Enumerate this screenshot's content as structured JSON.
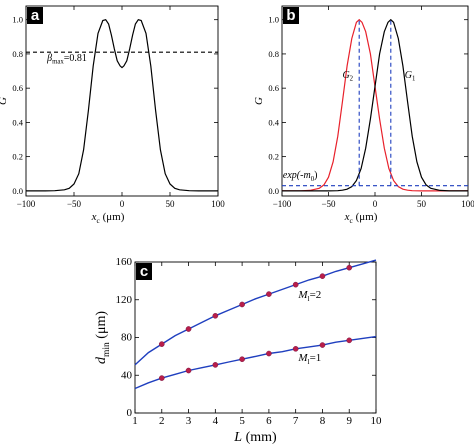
{
  "chart_data": [
    {
      "panel": "a",
      "type": "line",
      "xlabel": "x_c (μm)",
      "ylabel": "G",
      "xlim": [
        -100,
        100
      ],
      "ylim": [
        -0.03,
        1.08
      ],
      "x_ticks": [
        -100,
        -50,
        0,
        50,
        100
      ],
      "y_ticks": [
        0.0,
        0.2,
        0.4,
        0.6,
        0.8,
        1.0
      ],
      "x_tick_labels": [
        "−100",
        "−50",
        "0",
        "50",
        "100"
      ],
      "y_tick_labels": [
        "0.0",
        "0.2",
        "0.4",
        "0.6",
        "0.8",
        "1.0"
      ],
      "series": [
        {
          "color": "#000000",
          "x": [
            -100,
            -90,
            -80,
            -70,
            -60,
            -55,
            -50,
            -45,
            -40,
            -35,
            -30,
            -25,
            -20,
            -17,
            -14,
            -11,
            -8,
            -5,
            -2,
            0,
            2,
            5,
            8,
            11,
            14,
            17,
            20,
            25,
            30,
            35,
            40,
            45,
            50,
            55,
            60,
            70,
            80,
            90,
            100
          ],
          "y": [
            0,
            0,
            0,
            0.001,
            0.006,
            0.015,
            0.04,
            0.1,
            0.24,
            0.47,
            0.73,
            0.92,
            0.995,
            1.0,
            0.975,
            0.91,
            0.83,
            0.76,
            0.73,
            0.72,
            0.73,
            0.76,
            0.83,
            0.91,
            0.975,
            1.0,
            0.995,
            0.92,
            0.73,
            0.47,
            0.24,
            0.1,
            0.04,
            0.015,
            0.006,
            0.001,
            0,
            0,
            0
          ]
        },
        {
          "color": "#000000",
          "dashed": true,
          "x": [
            -100,
            100
          ],
          "y": [
            0.81,
            0.81
          ]
        }
      ],
      "annotations": [
        {
          "text": "β",
          "sub": "max",
          "value_text": "=0.81",
          "x": -78,
          "y": 0.76
        }
      ],
      "grid": false
    },
    {
      "panel": "b",
      "type": "line",
      "xlabel": "x_c (μm)",
      "ylabel": "G",
      "xlim": [
        -100,
        100
      ],
      "ylim": [
        -0.03,
        1.08
      ],
      "x_ticks": [
        -100,
        -50,
        0,
        50,
        100
      ],
      "y_ticks": [
        0.0,
        0.2,
        0.4,
        0.6,
        0.8,
        1.0
      ],
      "x_tick_labels": [
        "−100",
        "−50",
        "0",
        "50",
        "100"
      ],
      "y_tick_labels": [
        "0.0",
        "0.2",
        "0.4",
        "0.6",
        "0.8",
        "1.0"
      ],
      "series": [
        {
          "name": "G_2",
          "color": "#e8212b",
          "x": [
            -100,
            -90,
            -80,
            -70,
            -60,
            -55,
            -50,
            -45,
            -40,
            -35,
            -30,
            -25,
            -20,
            -17,
            -14,
            -10,
            -5,
            0,
            5,
            10,
            15,
            20,
            25,
            30,
            35,
            40,
            50,
            60,
            70,
            80,
            90,
            100
          ],
          "y": [
            0,
            0,
            0,
            0.003,
            0.015,
            0.035,
            0.08,
            0.17,
            0.32,
            0.52,
            0.73,
            0.89,
            0.985,
            1.0,
            0.985,
            0.93,
            0.8,
            0.61,
            0.42,
            0.25,
            0.13,
            0.06,
            0.025,
            0.01,
            0.004,
            0.001,
            0,
            0,
            0,
            0,
            0,
            0
          ]
        },
        {
          "name": "G_1",
          "color": "#000000",
          "x": [
            -100,
            -90,
            -80,
            -70,
            -60,
            -50,
            -40,
            -35,
            -30,
            -25,
            -20,
            -15,
            -10,
            -5,
            0,
            5,
            10,
            14,
            17,
            20,
            25,
            30,
            35,
            40,
            45,
            50,
            55,
            60,
            70,
            80,
            90,
            100
          ],
          "y": [
            0,
            0,
            0,
            0,
            0,
            0,
            0.001,
            0.004,
            0.01,
            0.025,
            0.06,
            0.13,
            0.25,
            0.42,
            0.61,
            0.8,
            0.93,
            0.985,
            1.0,
            0.985,
            0.89,
            0.73,
            0.52,
            0.32,
            0.17,
            0.08,
            0.035,
            0.015,
            0.003,
            0,
            0,
            0
          ]
        },
        {
          "name": "exp(-m_0)",
          "color": "#1f3fbf",
          "dashed": true,
          "x": [
            -100,
            100
          ],
          "y": [
            0.03,
            0.03
          ]
        },
        {
          "color": "#1f3fbf",
          "dashed": true,
          "x": [
            -17,
            -17
          ],
          "y": [
            0.03,
            1.0
          ]
        },
        {
          "color": "#1f3fbf",
          "dashed": true,
          "x": [
            17,
            17
          ],
          "y": [
            0.03,
            1.0
          ]
        }
      ],
      "annotations": [
        {
          "text": "G",
          "sub": "2",
          "x": -35,
          "y": 0.66
        },
        {
          "text": "G",
          "sub": "1",
          "x": 32,
          "y": 0.66
        },
        {
          "text": "exp(-m",
          "sub": "0",
          "value_text": ")",
          "x": -99,
          "y": 0.075
        }
      ],
      "grid": false
    },
    {
      "panel": "c",
      "type": "line",
      "xlabel": "L (mm)",
      "ylabel": "d_min (μm)",
      "xlim": [
        1,
        10
      ],
      "ylim": [
        0,
        160
      ],
      "x_ticks": [
        1,
        2,
        3,
        4,
        5,
        6,
        7,
        8,
        9,
        10
      ],
      "y_ticks": [
        0,
        40,
        80,
        120,
        160
      ],
      "x_tick_labels": [
        "1",
        "2",
        "3",
        "4",
        "5",
        "6",
        "7",
        "8",
        "9",
        "10"
      ],
      "y_tick_labels": [
        "0",
        "40",
        "80",
        "120",
        "160"
      ],
      "series": [
        {
          "name": "M_l=2",
          "line_color": "#1f3fbf",
          "marker_color": "#b81e4a",
          "line_x": [
            1,
            1.5,
            2,
            2.5,
            3,
            3.5,
            4,
            4.5,
            5,
            5.5,
            6,
            6.5,
            7,
            7.5,
            8,
            8.5,
            9,
            9.5,
            10
          ],
          "line_y": [
            51,
            64,
            73,
            82,
            89,
            96,
            103,
            109,
            115,
            121,
            126,
            131,
            136,
            141,
            145,
            150,
            154,
            158,
            162
          ],
          "points_x": [
            2,
            3,
            4,
            5,
            6,
            7,
            8,
            9
          ],
          "points_y": [
            73,
            89,
            103,
            115,
            126,
            136,
            145,
            154
          ]
        },
        {
          "name": "M_l=1",
          "line_color": "#1f3fbf",
          "marker_color": "#b81e4a",
          "line_x": [
            1,
            1.5,
            2,
            2.5,
            3,
            3.5,
            4,
            4.5,
            5,
            5.5,
            6,
            6.5,
            7,
            7.5,
            8,
            8.5,
            9,
            9.5,
            10
          ],
          "line_y": [
            26,
            32,
            37,
            41,
            45,
            48,
            51,
            54,
            57,
            60,
            63,
            65,
            68,
            70,
            72,
            75,
            77,
            79,
            81
          ],
          "points_x": [
            2,
            3,
            4,
            5,
            6,
            7,
            8,
            9
          ],
          "points_y": [
            37,
            45,
            51,
            57,
            63,
            68,
            72,
            77
          ]
        }
      ],
      "annotations": [
        {
          "text": "M",
          "sub": "l",
          "value_text": "=2",
          "x": 7.1,
          "y": 122
        },
        {
          "text": "M",
          "sub": "l",
          "value_text": "=1",
          "x": 7.1,
          "y": 55
        }
      ],
      "grid": false
    }
  ],
  "panels": {
    "a": {
      "letter": "a",
      "xlabel_var": "x",
      "xlabel_sub": "c",
      "xlabel_unit": "(μm)",
      "ylabel": "G"
    },
    "b": {
      "letter": "b",
      "xlabel_var": "x",
      "xlabel_sub": "c",
      "xlabel_unit": "(μm)",
      "ylabel": "G"
    },
    "c": {
      "letter": "c",
      "xlabel_var": "L",
      "xlabel_unit": "(mm)",
      "ylabel_var": "d",
      "ylabel_sub": "min",
      "ylabel_unit": "(μm)"
    }
  }
}
